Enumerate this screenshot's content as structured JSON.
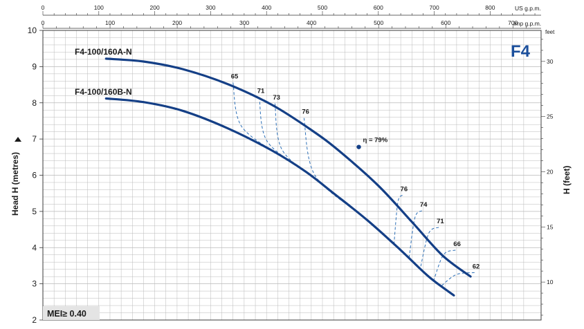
{
  "chart_data": {
    "type": "line",
    "badge": "F4",
    "ylabel_left": "Head H (metres)",
    "ylabel_right": "H (feet)",
    "right_unit": "feet",
    "top_scale_1_label": "US g.p.m.",
    "top_scale_2_label": "Imp g.p.m.",
    "mei_label": "MEI≥ 0.40",
    "colors": {
      "curve": "#143f86",
      "efficiency": "#2c6fb7",
      "badge": "#1b4f9c",
      "grid": "#b9b9b9"
    },
    "y_left": {
      "range": [
        2,
        10
      ],
      "ticks": [
        "2",
        "3",
        "4",
        "5",
        "6",
        "7",
        "8",
        "9",
        "10"
      ]
    },
    "y_right": {
      "range_feet": [
        6.56,
        32.81
      ],
      "ticks": [
        "10",
        "15",
        "20",
        "25",
        "30"
      ]
    },
    "x_us_gpm": {
      "range": [
        0,
        880
      ],
      "ticks": [
        "0",
        "100",
        "200",
        "300",
        "400",
        "500",
        "600",
        "700",
        "800"
      ]
    },
    "x_imp_gpm": {
      "range": [
        0,
        733
      ],
      "ticks": [
        "0",
        "100",
        "200",
        "300",
        "400",
        "500",
        "600",
        "700"
      ]
    },
    "series": [
      {
        "name": "F4-100/160A-N",
        "x": [
          113,
          180,
          250,
          330,
          410,
          480,
          530,
          600,
          660,
          715,
          765
        ],
        "y": [
          9.22,
          9.14,
          8.93,
          8.52,
          7.94,
          7.25,
          6.67,
          5.71,
          4.71,
          3.78,
          3.2
        ]
      },
      {
        "name": "F4-100/160B-N",
        "x": [
          113,
          180,
          250,
          330,
          410,
          470,
          520,
          580,
          640,
          690,
          735
        ],
        "y": [
          8.12,
          8.02,
          7.78,
          7.3,
          6.68,
          6.1,
          5.5,
          4.76,
          3.93,
          3.2,
          2.68
        ]
      }
    ],
    "efficiency_points": [
      {
        "label": "65",
        "x": 340,
        "y": 8.56
      },
      {
        "label": "71",
        "x": 387,
        "y": 8.16
      },
      {
        "label": "73",
        "x": 415,
        "y": 7.98
      },
      {
        "label": "76",
        "x": 467,
        "y": 7.58
      },
      {
        "label": "η = 79%",
        "x": 565,
        "y": 6.78,
        "marker": true
      },
      {
        "label": "76",
        "x": 643,
        "y": 5.45
      },
      {
        "label": "74",
        "x": 678,
        "y": 5.02
      },
      {
        "label": "71",
        "x": 708,
        "y": 4.56
      },
      {
        "label": "66",
        "x": 738,
        "y": 3.93
      },
      {
        "label": "62",
        "x": 772,
        "y": 3.31
      }
    ]
  }
}
